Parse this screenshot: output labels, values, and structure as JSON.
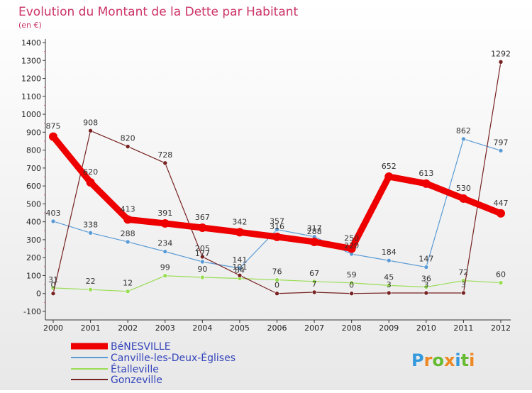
{
  "chart_data": {
    "type": "line",
    "title": "Evolution du Montant de la Dette par Habitant",
    "unit_label": "(en €)",
    "x": [
      2000,
      2001,
      2002,
      2003,
      2004,
      2005,
      2006,
      2007,
      2008,
      2009,
      2010,
      2011,
      2012
    ],
    "ylim": [
      -100,
      1400
    ],
    "yticks": [
      -100,
      0,
      100,
      200,
      300,
      400,
      500,
      600,
      700,
      800,
      900,
      1000,
      1100,
      1200,
      1300,
      1400
    ],
    "grid": false,
    "legend_position": "bottom-left",
    "series": [
      {
        "name": "BéNESVILLE",
        "color": "#ee0000",
        "values": [
          875,
          620,
          413,
          391,
          367,
          342,
          316,
          288,
          250,
          652,
          613,
          530,
          447
        ]
      },
      {
        "name": "Canville-les-Deux-Églises",
        "color": "#5b9bd5",
        "values": [
          403,
          338,
          288,
          234,
          177,
          141,
          357,
          317,
          220,
          184,
          147,
          862,
          797
        ]
      },
      {
        "name": "Étalleville",
        "color": "#99dd55",
        "values": [
          31,
          22,
          12,
          99,
          90,
          84,
          76,
          67,
          59,
          45,
          36,
          72,
          60
        ]
      },
      {
        "name": "Gonzeville",
        "color": "#772222",
        "values": [
          0,
          908,
          820,
          728,
          205,
          101,
          0,
          7,
          0,
          3,
          3,
          3,
          1292
        ]
      }
    ]
  },
  "colors": {
    "title": "#cc3366",
    "axis": "#333333",
    "legend_text": "#3344bb"
  },
  "logo": {
    "text": "Proxiti"
  }
}
